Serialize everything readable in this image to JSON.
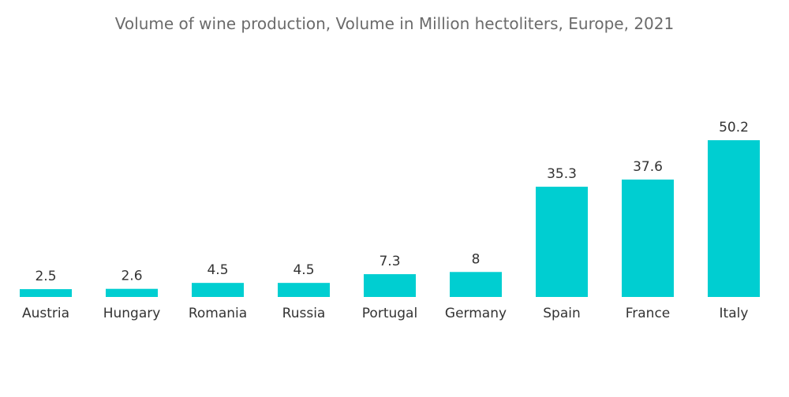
{
  "chart_data": {
    "type": "bar",
    "title": "Volume of wine production, Volume in Million hectoliters, Europe, 2021",
    "xlabel": "",
    "ylabel": "",
    "categories": [
      "Austria",
      "Hungary",
      "Romania",
      "Russia",
      "Portugal",
      "Germany",
      "Spain",
      "France",
      "Italy"
    ],
    "values": [
      2.5,
      2.6,
      4.5,
      4.5,
      7.3,
      8,
      35.3,
      37.6,
      50.2
    ],
    "value_labels": [
      "2.5",
      "2.6",
      "4.5",
      "4.5",
      "7.3",
      "8",
      "35.3",
      "37.6",
      "50.2"
    ],
    "ylim": [
      0,
      50.2
    ],
    "grid": false,
    "legend": "none",
    "bar_color": "#00ced1",
    "text_color": "#333333",
    "title_color": "#6b6b6b"
  }
}
